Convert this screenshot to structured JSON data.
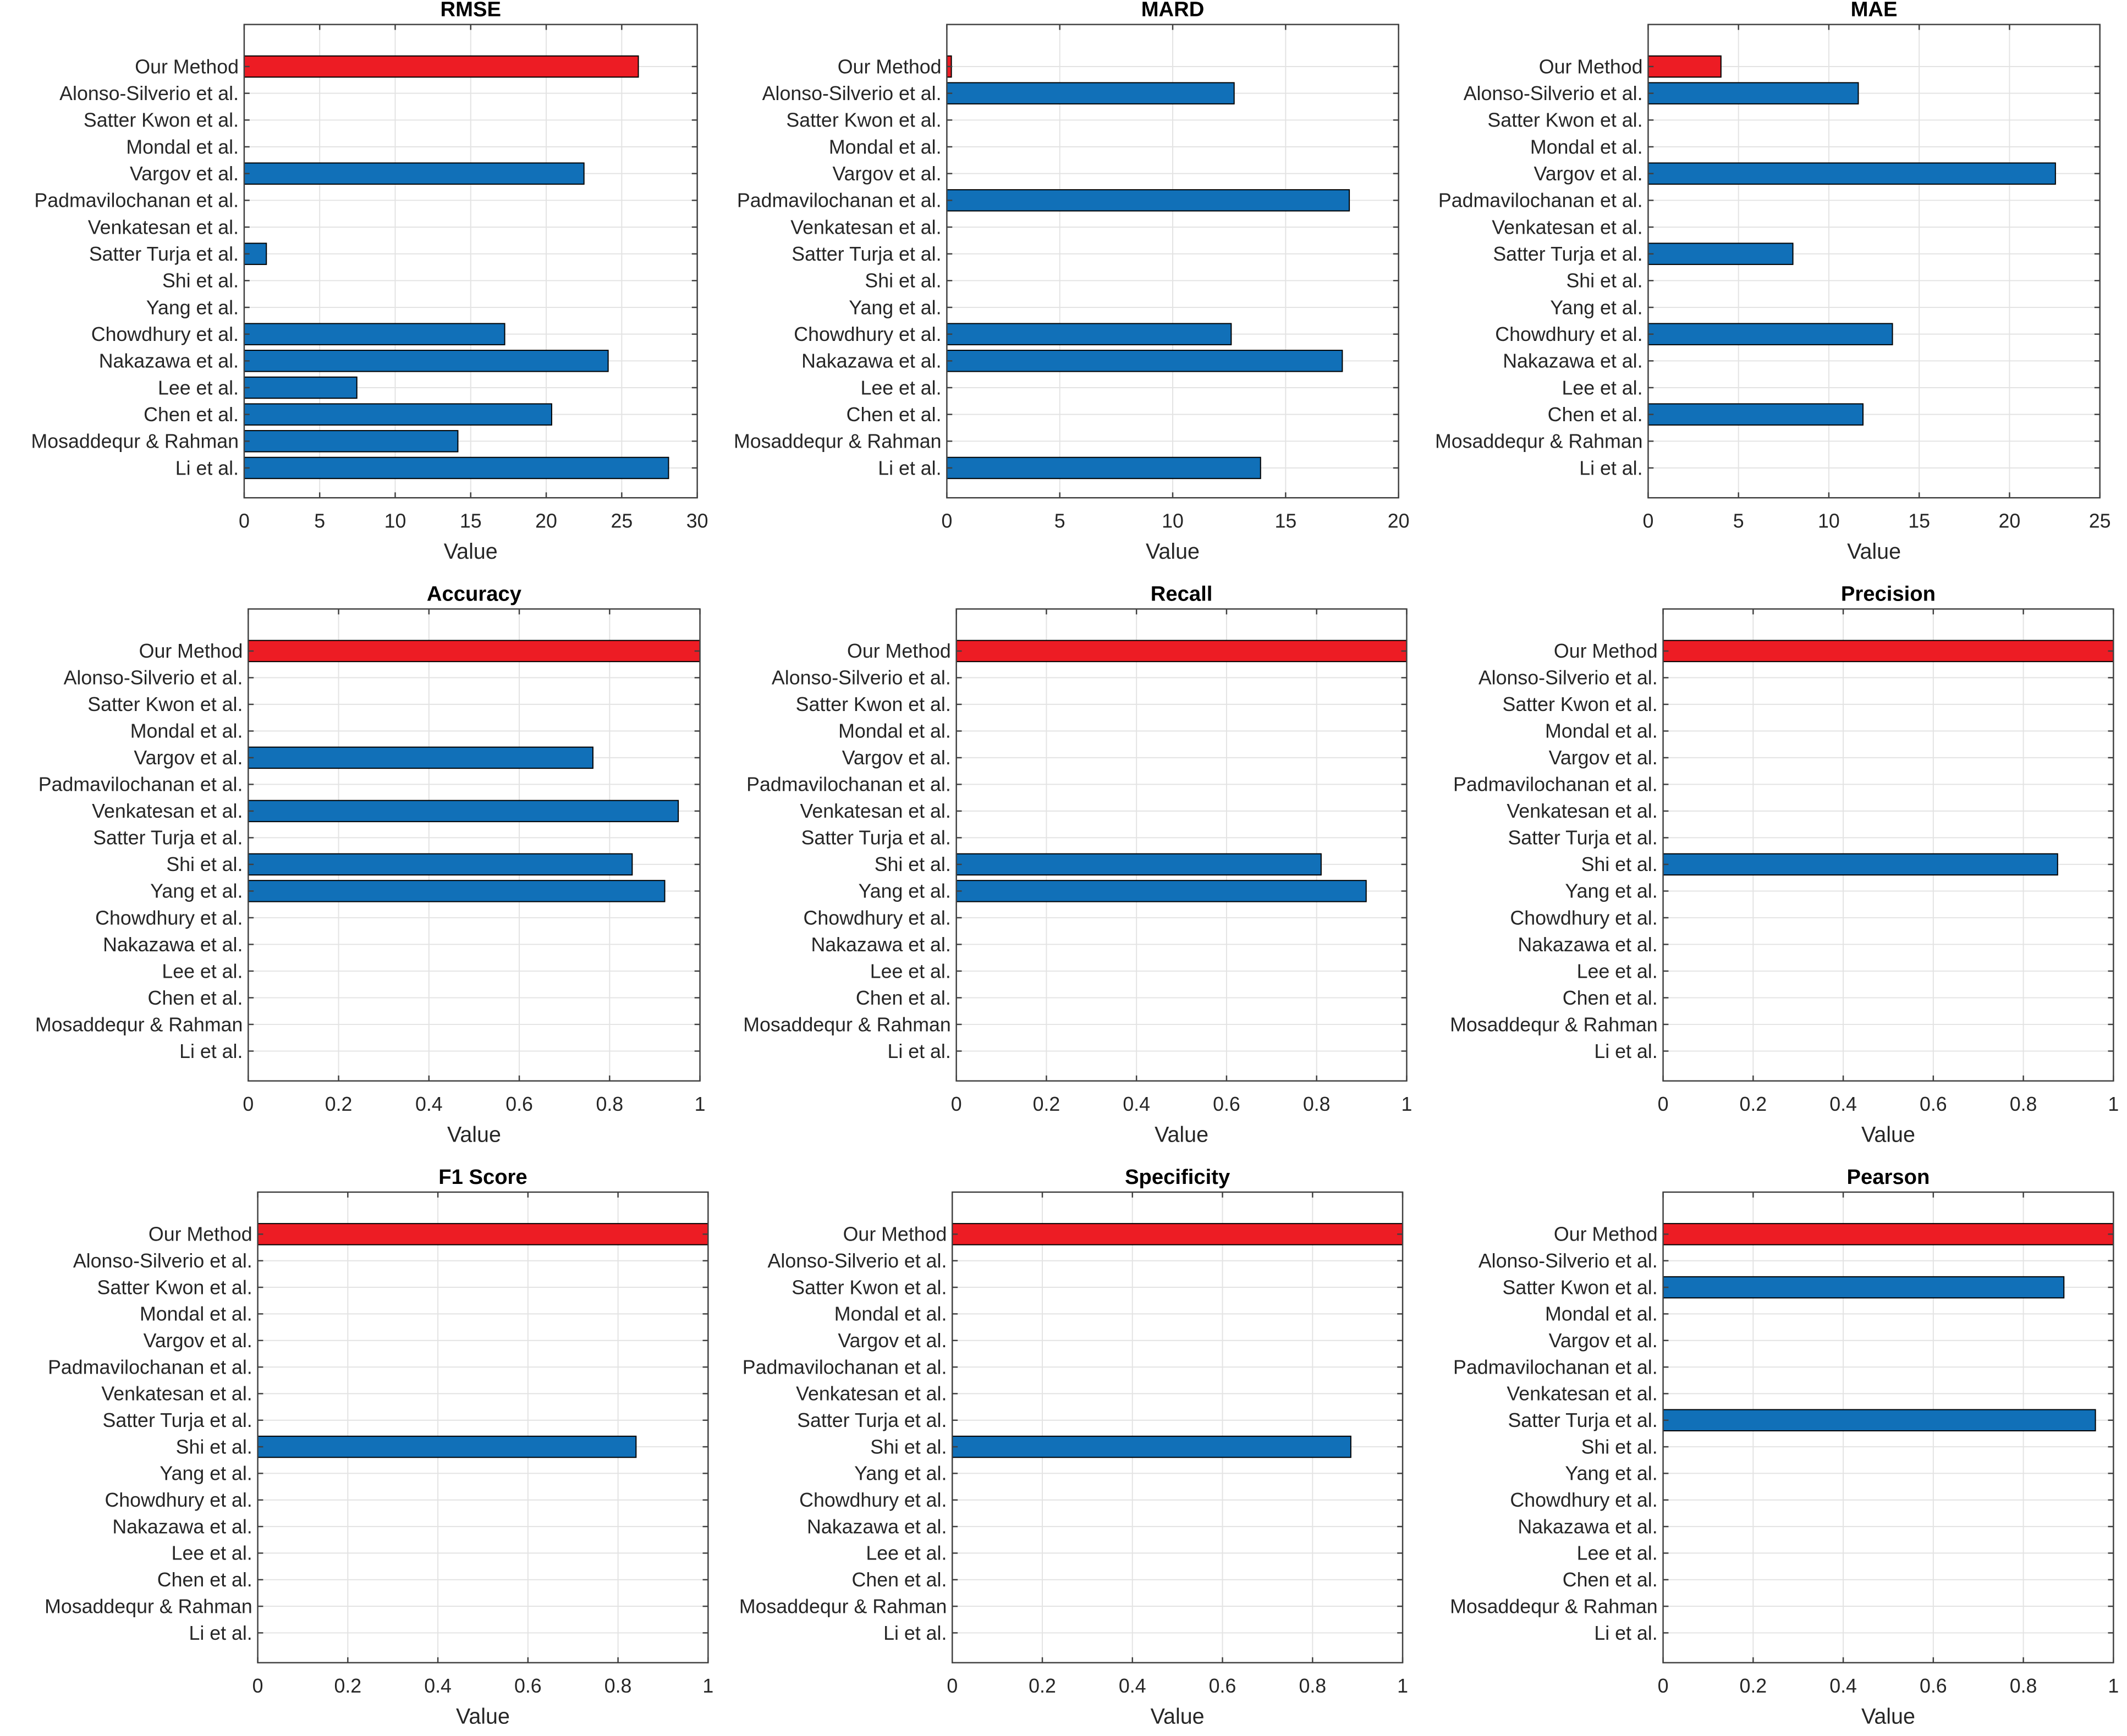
{
  "colors": {
    "highlight": "#ED1C24",
    "other": "#1170B8",
    "bar_edge": "#000000",
    "grid": "#E3E3E3",
    "axis": "#404040"
  },
  "chart_data": [
    {
      "type": "bar",
      "orientation": "horizontal",
      "title": "RMSE",
      "xlabel": "Value",
      "ylabel": "",
      "xlim": [
        0,
        30
      ],
      "xticks": [
        0,
        5,
        10,
        15,
        20,
        25,
        30
      ],
      "grid": true,
      "categories": [
        "Our Method",
        "Alonso-Silverio et al.",
        "Satter Kwon et al.",
        "Mondal et al.",
        "Vargov et al.",
        "Padmavilochanan et al.",
        "Venkatesan et al.",
        "Satter Turja et al.",
        "Shi et al.",
        "Yang et al.",
        "Chowdhury et al.",
        "Nakazawa et al.",
        "Lee et al.",
        "Chen et al.",
        "Mosaddequr & Rahman",
        "Li et al."
      ],
      "values": [
        26.1,
        null,
        null,
        null,
        22.5,
        null,
        null,
        1.47,
        null,
        null,
        17.25,
        24.1,
        7.46,
        20.36,
        14.15,
        28.1
      ]
    },
    {
      "type": "bar",
      "orientation": "horizontal",
      "title": "MARD",
      "xlabel": "Value",
      "ylabel": "",
      "xlim": [
        0,
        20
      ],
      "xticks": [
        0,
        5,
        10,
        15,
        20
      ],
      "grid": true,
      "categories": [
        "Our Method",
        "Alonso-Silverio et al.",
        "Satter Kwon et al.",
        "Mondal et al.",
        "Vargov et al.",
        "Padmavilochanan et al.",
        "Venkatesan et al.",
        "Satter Turja et al.",
        "Shi et al.",
        "Yang et al.",
        "Chowdhury et al.",
        "Nakazawa et al.",
        "Lee et al.",
        "Chen et al.",
        "Mosaddequr & Rahman",
        "Li et al."
      ],
      "values": [
        0.2,
        12.72,
        null,
        null,
        null,
        17.82,
        null,
        null,
        null,
        null,
        12.59,
        17.51,
        null,
        null,
        null,
        13.89
      ]
    },
    {
      "type": "bar",
      "orientation": "horizontal",
      "title": "MAE",
      "xlabel": "Value",
      "ylabel": "",
      "xlim": [
        0,
        25
      ],
      "xticks": [
        0,
        5,
        10,
        15,
        20,
        25
      ],
      "grid": true,
      "categories": [
        "Our Method",
        "Alonso-Silverio et al.",
        "Satter Kwon et al.",
        "Mondal et al.",
        "Vargov et al.",
        "Padmavilochanan et al.",
        "Venkatesan et al.",
        "Satter Turja et al.",
        "Shi et al.",
        "Yang et al.",
        "Chowdhury et al.",
        "Nakazawa et al.",
        "Lee et al.",
        "Chen et al.",
        "Mosaddequr & Rahman",
        "Li et al."
      ],
      "values": [
        4.03,
        11.63,
        null,
        null,
        22.54,
        null,
        null,
        8.01,
        null,
        null,
        13.52,
        null,
        null,
        11.89,
        null,
        null
      ]
    },
    {
      "type": "bar",
      "orientation": "horizontal",
      "title": "Accuracy",
      "xlabel": "Value",
      "ylabel": "",
      "xlim": [
        0,
        1
      ],
      "xticks": [
        0,
        0.2,
        0.4,
        0.6,
        0.8,
        1
      ],
      "grid": true,
      "categories": [
        "Our Method",
        "Alonso-Silverio et al.",
        "Satter Kwon et al.",
        "Mondal et al.",
        "Vargov et al.",
        "Padmavilochanan et al.",
        "Venkatesan et al.",
        "Satter Turja et al.",
        "Shi et al.",
        "Yang et al.",
        "Chowdhury et al.",
        "Nakazawa et al.",
        "Lee et al.",
        "Chen et al.",
        "Mosaddequr & Rahman",
        "Li et al."
      ],
      "values": [
        1.0,
        null,
        null,
        null,
        0.763,
        null,
        0.952,
        null,
        0.85,
        0.922,
        null,
        null,
        null,
        null,
        null,
        null
      ]
    },
    {
      "type": "bar",
      "orientation": "horizontal",
      "title": "Recall",
      "xlabel": "Value",
      "ylabel": "",
      "xlim": [
        0,
        1
      ],
      "xticks": [
        0,
        0.2,
        0.4,
        0.6,
        0.8,
        1
      ],
      "grid": true,
      "categories": [
        "Our Method",
        "Alonso-Silverio et al.",
        "Satter Kwon et al.",
        "Mondal et al.",
        "Vargov et al.",
        "Padmavilochanan et al.",
        "Venkatesan et al.",
        "Satter Turja et al.",
        "Shi et al.",
        "Yang et al.",
        "Chowdhury et al.",
        "Nakazawa et al.",
        "Lee et al.",
        "Chen et al.",
        "Mosaddequr & Rahman",
        "Li et al."
      ],
      "values": [
        1.0,
        null,
        null,
        null,
        null,
        null,
        null,
        null,
        0.81,
        0.91,
        null,
        null,
        null,
        null,
        null,
        null
      ]
    },
    {
      "type": "bar",
      "orientation": "horizontal",
      "title": "Precision",
      "xlabel": "Value",
      "ylabel": "",
      "xlim": [
        0,
        1
      ],
      "xticks": [
        0,
        0.2,
        0.4,
        0.6,
        0.8,
        1
      ],
      "grid": true,
      "categories": [
        "Our Method",
        "Alonso-Silverio et al.",
        "Satter Kwon et al.",
        "Mondal et al.",
        "Vargov et al.",
        "Padmavilochanan et al.",
        "Venkatesan et al.",
        "Satter Turja et al.",
        "Shi et al.",
        "Yang et al.",
        "Chowdhury et al.",
        "Nakazawa et al.",
        "Lee et al.",
        "Chen et al.",
        "Mosaddequr & Rahman",
        "Li et al."
      ],
      "values": [
        1.0,
        null,
        null,
        null,
        null,
        null,
        null,
        null,
        0.876,
        null,
        null,
        null,
        null,
        null,
        null,
        null
      ]
    },
    {
      "type": "bar",
      "orientation": "horizontal",
      "title": "F1 Score",
      "xlabel": "Value",
      "ylabel": "",
      "xlim": [
        0,
        1
      ],
      "xticks": [
        0,
        0.2,
        0.4,
        0.6,
        0.8,
        1
      ],
      "grid": true,
      "categories": [
        "Our Method",
        "Alonso-Silverio et al.",
        "Satter Kwon et al.",
        "Mondal et al.",
        "Vargov et al.",
        "Padmavilochanan et al.",
        "Venkatesan et al.",
        "Satter Turja et al.",
        "Shi et al.",
        "Yang et al.",
        "Chowdhury et al.",
        "Nakazawa et al.",
        "Lee et al.",
        "Chen et al.",
        "Mosaddequr & Rahman",
        "Li et al."
      ],
      "values": [
        1.0,
        null,
        null,
        null,
        null,
        null,
        null,
        null,
        0.84,
        null,
        null,
        null,
        null,
        null,
        null,
        null
      ]
    },
    {
      "type": "bar",
      "orientation": "horizontal",
      "title": "Specificity",
      "xlabel": "Value",
      "ylabel": "",
      "xlim": [
        0,
        1
      ],
      "xticks": [
        0,
        0.2,
        0.4,
        0.6,
        0.8,
        1
      ],
      "grid": true,
      "categories": [
        "Our Method",
        "Alonso-Silverio et al.",
        "Satter Kwon et al.",
        "Mondal et al.",
        "Vargov et al.",
        "Padmavilochanan et al.",
        "Venkatesan et al.",
        "Satter Turja et al.",
        "Shi et al.",
        "Yang et al.",
        "Chowdhury et al.",
        "Nakazawa et al.",
        "Lee et al.",
        "Chen et al.",
        "Mosaddequr & Rahman",
        "Li et al."
      ],
      "values": [
        1.0,
        null,
        null,
        null,
        null,
        null,
        null,
        null,
        0.885,
        null,
        null,
        null,
        null,
        null,
        null,
        null
      ]
    },
    {
      "type": "bar",
      "orientation": "horizontal",
      "title": "Pearson",
      "xlabel": "Value",
      "ylabel": "",
      "xlim": [
        0,
        1
      ],
      "xticks": [
        0,
        0.2,
        0.4,
        0.6,
        0.8,
        1
      ],
      "grid": true,
      "categories": [
        "Our Method",
        "Alonso-Silverio et al.",
        "Satter Kwon et al.",
        "Mondal et al.",
        "Vargov et al.",
        "Padmavilochanan et al.",
        "Venkatesan et al.",
        "Satter Turja et al.",
        "Shi et al.",
        "Yang et al.",
        "Chowdhury et al.",
        "Nakazawa et al.",
        "Lee et al.",
        "Chen et al.",
        "Mosaddequr & Rahman",
        "Li et al."
      ],
      "values": [
        1.0,
        null,
        0.89,
        null,
        null,
        null,
        null,
        0.96,
        null,
        null,
        null,
        null,
        null,
        null,
        null,
        null
      ]
    }
  ]
}
